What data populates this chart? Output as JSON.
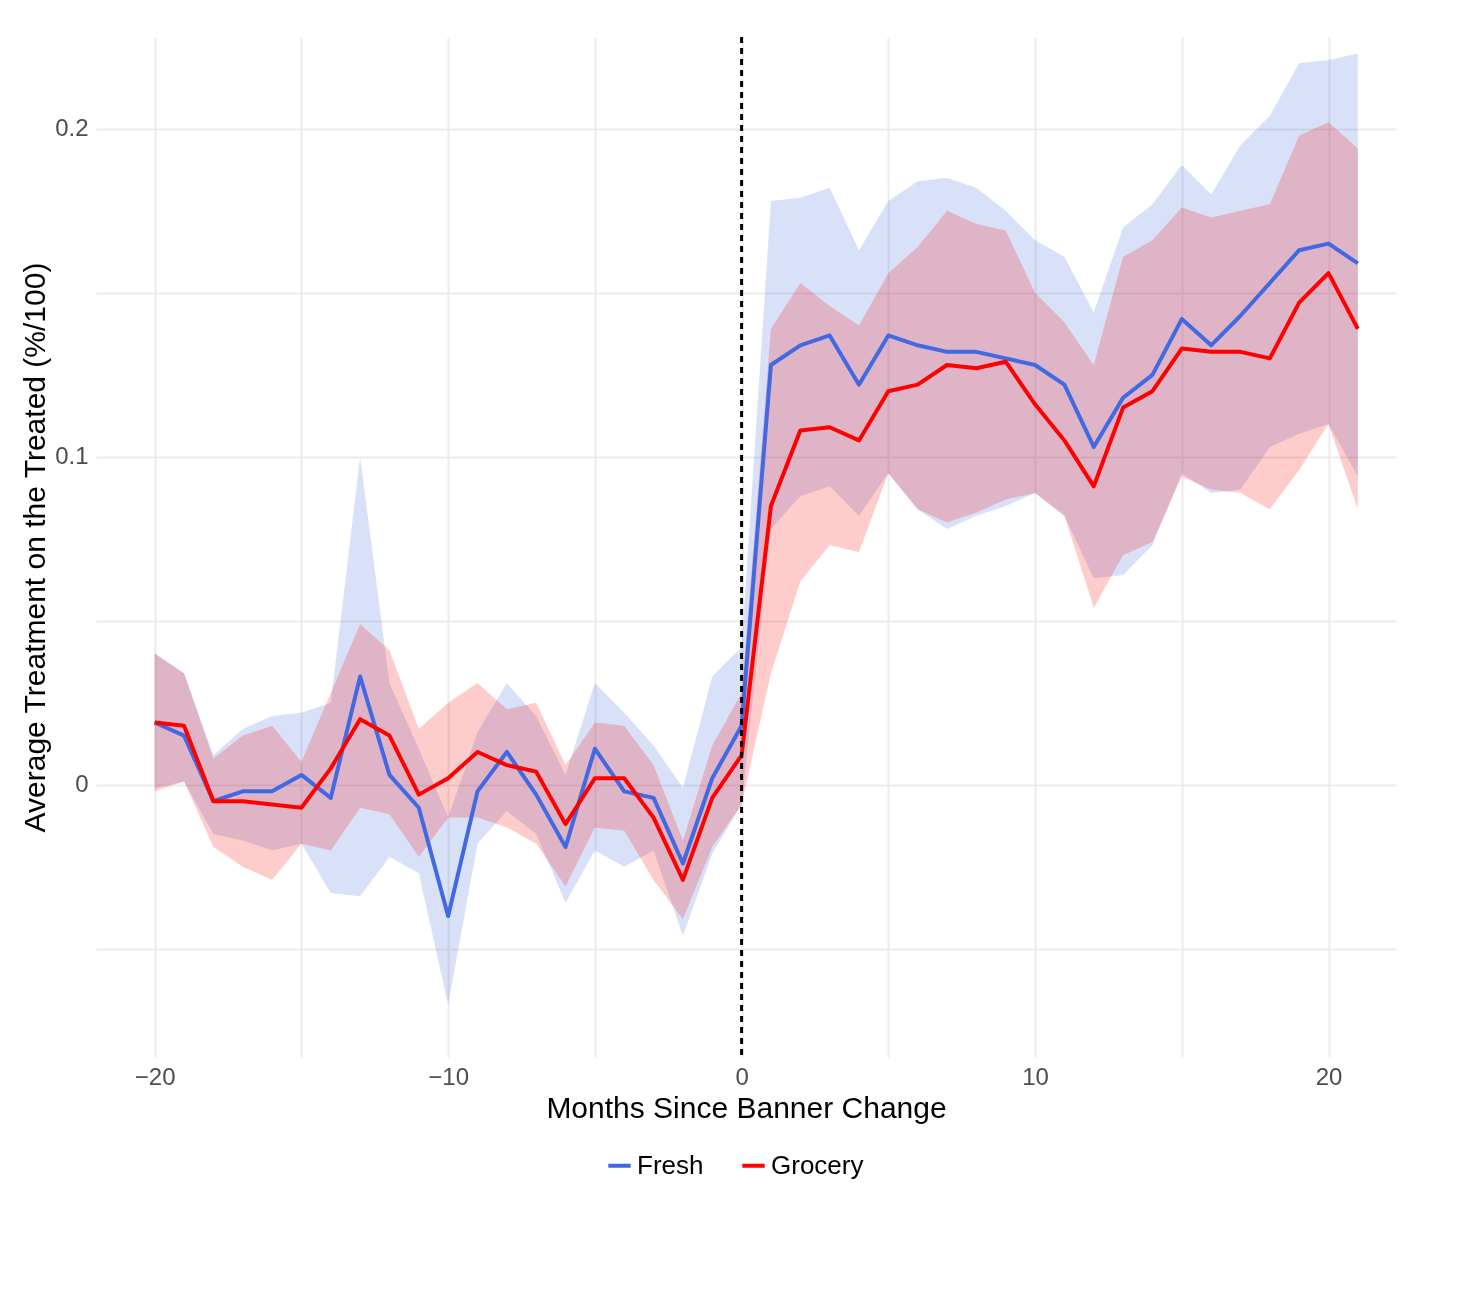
{
  "chart_data": {
    "type": "line",
    "xlabel": "Months Since Banner Change",
    "ylabel": "Average Treatment on the Treated (%/100)",
    "x": [
      -20,
      -19,
      -18,
      -17,
      -16,
      -15,
      -14,
      -13,
      -12,
      -11,
      -10,
      -9,
      -8,
      -7,
      -6,
      -5,
      -4,
      -3,
      -2,
      -1,
      0,
      1,
      2,
      3,
      4,
      5,
      6,
      7,
      8,
      9,
      10,
      11,
      12,
      13,
      14,
      15,
      16,
      17,
      18,
      19,
      20,
      21
    ],
    "series": [
      {
        "name": "Fresh",
        "color": "#4169e1",
        "values": [
          0.019,
          0.015,
          -0.005,
          -0.002,
          -0.002,
          0.003,
          -0.004,
          0.033,
          0.003,
          -0.007,
          -0.04,
          -0.002,
          0.01,
          -0.003,
          -0.019,
          0.011,
          -0.002,
          -0.004,
          -0.024,
          0.002,
          0.018,
          0.128,
          0.134,
          0.137,
          0.122,
          0.137,
          0.134,
          0.132,
          0.132,
          0.13,
          0.128,
          0.122,
          0.103,
          0.118,
          0.125,
          0.142,
          0.134,
          0.143,
          0.153,
          0.163,
          0.165,
          0.159
        ],
        "lower": [
          -0.001,
          0.001,
          -0.015,
          -0.017,
          -0.02,
          -0.018,
          -0.033,
          -0.034,
          -0.022,
          -0.027,
          -0.067,
          -0.018,
          -0.008,
          -0.015,
          -0.036,
          -0.02,
          -0.025,
          -0.02,
          -0.046,
          -0.021,
          -0.006,
          0.078,
          0.088,
          0.091,
          0.082,
          0.095,
          0.084,
          0.078,
          0.082,
          0.085,
          0.089,
          0.082,
          0.063,
          0.064,
          0.073,
          0.095,
          0.089,
          0.09,
          0.103,
          0.107,
          0.11,
          0.094
        ],
        "upper": [
          0.04,
          0.034,
          0.009,
          0.017,
          0.021,
          0.022,
          0.025,
          0.1,
          0.031,
          0.011,
          -0.01,
          0.016,
          0.031,
          0.021,
          0.003,
          0.031,
          0.022,
          0.012,
          -0.001,
          0.033,
          0.042,
          0.178,
          0.179,
          0.182,
          0.163,
          0.178,
          0.184,
          0.185,
          0.182,
          0.175,
          0.166,
          0.161,
          0.144,
          0.17,
          0.177,
          0.189,
          0.18,
          0.195,
          0.204,
          0.22,
          0.221,
          0.223
        ]
      },
      {
        "name": "Grocery",
        "color": "#ff0000",
        "values": [
          0.019,
          0.018,
          -0.005,
          -0.005,
          -0.006,
          -0.007,
          0.005,
          0.02,
          0.015,
          -0.003,
          0.002,
          0.01,
          0.006,
          0.004,
          -0.012,
          0.002,
          0.002,
          -0.01,
          -0.029,
          -0.004,
          0.009,
          0.085,
          0.108,
          0.109,
          0.105,
          0.12,
          0.122,
          0.128,
          0.127,
          0.129,
          0.116,
          0.105,
          0.091,
          0.115,
          0.12,
          0.133,
          0.132,
          0.132,
          0.13,
          0.147,
          0.156,
          0.139
        ],
        "lower": [
          -0.002,
          0.001,
          -0.019,
          -0.025,
          -0.029,
          -0.018,
          -0.02,
          -0.007,
          -0.009,
          -0.022,
          -0.01,
          -0.01,
          -0.013,
          -0.018,
          -0.031,
          -0.013,
          -0.014,
          -0.029,
          -0.041,
          -0.019,
          -0.006,
          0.034,
          0.062,
          0.073,
          0.071,
          0.095,
          0.084,
          0.08,
          0.083,
          0.087,
          0.089,
          0.082,
          0.054,
          0.07,
          0.074,
          0.094,
          0.09,
          0.089,
          0.084,
          0.096,
          0.11,
          0.084
        ],
        "upper": [
          0.04,
          0.034,
          0.008,
          0.015,
          0.018,
          0.007,
          0.028,
          0.049,
          0.041,
          0.017,
          0.025,
          0.031,
          0.023,
          0.025,
          0.006,
          0.019,
          0.018,
          0.006,
          -0.017,
          0.012,
          0.028,
          0.139,
          0.153,
          0.146,
          0.14,
          0.156,
          0.164,
          0.175,
          0.171,
          0.169,
          0.15,
          0.141,
          0.128,
          0.161,
          0.166,
          0.176,
          0.173,
          0.175,
          0.177,
          0.198,
          0.202,
          0.194
        ]
      }
    ],
    "xlim": [
      -22,
      22.3
    ],
    "xticks": [
      {
        "value": -20,
        "label": "−20"
      },
      {
        "value": -15,
        "label": null
      },
      {
        "value": -10,
        "label": "−10"
      },
      {
        "value": -5,
        "label": null
      },
      0,
      {
        "value": 5,
        "label": null
      },
      10,
      {
        "value": 15,
        "label": null
      },
      20
    ],
    "ylim": [
      -0.083,
      0.228
    ],
    "yticks": [
      {
        "value": -0.05,
        "label": null
      },
      0.0,
      {
        "value": 0.05,
        "label": null
      },
      0.1,
      {
        "value": 0.15,
        "label": null
      },
      0.2
    ],
    "ref_lines": [
      {
        "axis": "x",
        "value": 0,
        "color": "#000000",
        "line_style": "dashed"
      }
    ],
    "grid": true,
    "legend": "bottom",
    "line_style": "solid"
  }
}
